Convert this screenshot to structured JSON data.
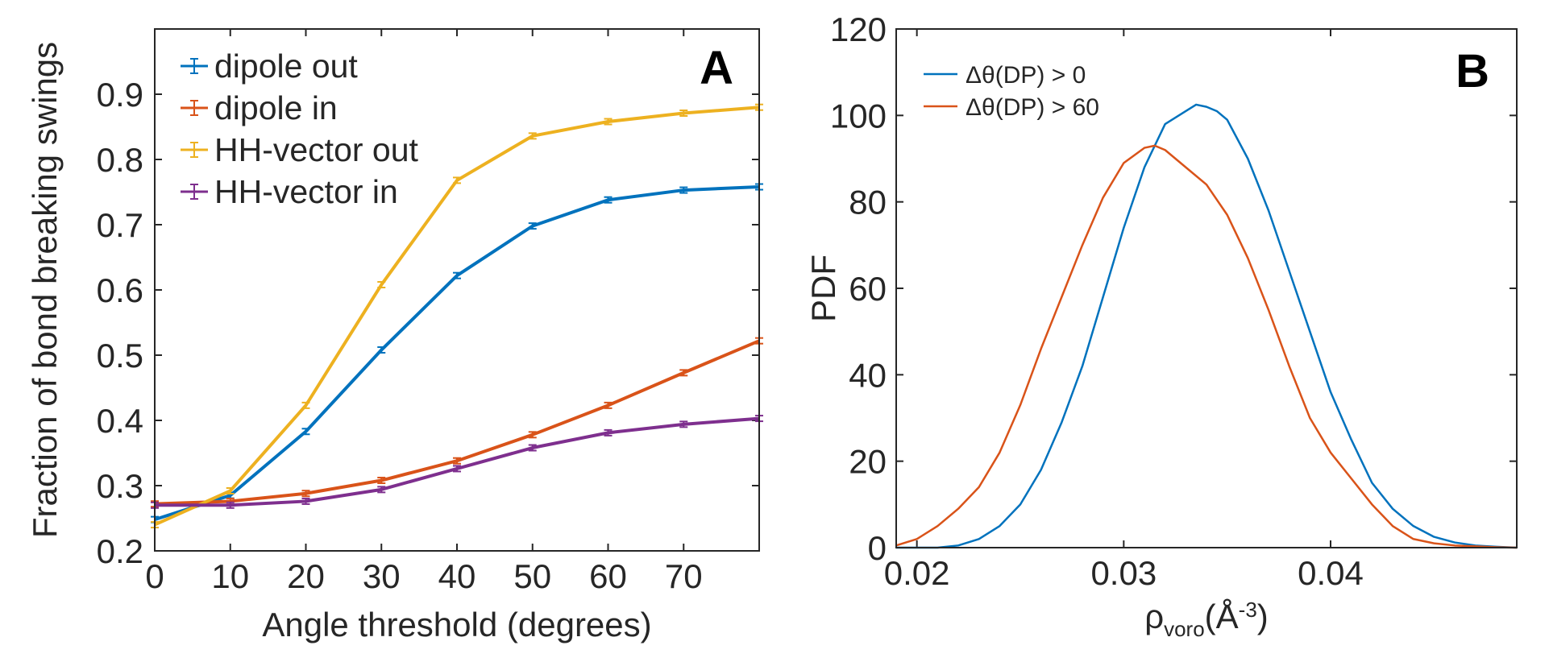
{
  "chart_data": [
    {
      "type": "line",
      "panel_label": "A",
      "title": "",
      "xlabel": "Angle threshold (degrees)",
      "ylabel": "Fraction of bond breaking swings",
      "xlim": [
        0,
        80
      ],
      "ylim": [
        0.2,
        1.0
      ],
      "xticks": [
        0,
        10,
        20,
        30,
        40,
        50,
        60,
        70
      ],
      "yticks": [
        0.2,
        0.3,
        0.4,
        0.5,
        0.6,
        0.7,
        0.8,
        0.9
      ],
      "grid": false,
      "legend_position": "top-left",
      "x": [
        0,
        10,
        20,
        30,
        40,
        50,
        60,
        70,
        80
      ],
      "series": [
        {
          "name": "dipole out",
          "color": "#0072BD",
          "values": [
            0.248,
            0.285,
            0.383,
            0.508,
            0.622,
            0.698,
            0.738,
            0.753,
            0.758
          ]
        },
        {
          "name": "dipole in",
          "color": "#D95319",
          "values": [
            0.272,
            0.276,
            0.288,
            0.308,
            0.338,
            0.378,
            0.423,
            0.473,
            0.522
          ]
        },
        {
          "name": "HH-vector out",
          "color": "#EDB120",
          "values": [
            0.24,
            0.292,
            0.423,
            0.608,
            0.768,
            0.836,
            0.858,
            0.871,
            0.88
          ]
        },
        {
          "name": "HH-vector in",
          "color": "#7E2F8E",
          "values": [
            0.27,
            0.27,
            0.276,
            0.294,
            0.326,
            0.358,
            0.381,
            0.394,
            0.403
          ]
        }
      ]
    },
    {
      "type": "line",
      "panel_label": "B",
      "title": "",
      "xlabel_main": "ρ",
      "xlabel_sub": "voro",
      "xlabel_paren_open": "(Å",
      "xlabel_sup": "-3",
      "xlabel_paren_close": ")",
      "ylabel": "PDF",
      "xlim": [
        0.019,
        0.049
      ],
      "ylim": [
        0,
        120
      ],
      "xticks": [
        0.02,
        0.03,
        0.04
      ],
      "xtick_labels": [
        "0.02",
        "0.03",
        "0.04"
      ],
      "yticks": [
        0,
        20,
        40,
        60,
        80,
        100,
        120
      ],
      "grid": false,
      "legend_position": "top-left",
      "series": [
        {
          "name": "Δθ(DP) > 0",
          "color": "#0072BD",
          "x": [
            0.019,
            0.021,
            0.022,
            0.023,
            0.024,
            0.025,
            0.026,
            0.027,
            0.028,
            0.029,
            0.03,
            0.031,
            0.032,
            0.033,
            0.0335,
            0.034,
            0.0345,
            0.035,
            0.036,
            0.037,
            0.038,
            0.039,
            0.04,
            0.041,
            0.042,
            0.043,
            0.044,
            0.045,
            0.046,
            0.047,
            0.048,
            0.049
          ],
          "values": [
            0,
            0,
            0.5,
            2,
            5,
            10,
            18,
            29,
            42,
            58,
            74,
            88,
            98,
            101,
            102.5,
            102,
            101,
            99,
            90,
            78,
            64,
            50,
            36,
            25,
            15,
            9,
            5,
            2.5,
            1.2,
            0.5,
            0.2,
            0
          ]
        },
        {
          "name": "Δθ(DP) > 60",
          "color": "#D95319",
          "x": [
            0.019,
            0.02,
            0.021,
            0.022,
            0.023,
            0.024,
            0.025,
            0.026,
            0.027,
            0.028,
            0.029,
            0.03,
            0.031,
            0.0315,
            0.032,
            0.033,
            0.034,
            0.035,
            0.036,
            0.037,
            0.038,
            0.039,
            0.04,
            0.041,
            0.042,
            0.043,
            0.044,
            0.045,
            0.046,
            0.047,
            0.048,
            0.049
          ],
          "values": [
            0.5,
            2,
            5,
            9,
            14,
            22,
            33,
            46,
            58,
            70,
            81,
            89,
            92.5,
            93,
            92,
            88,
            84,
            77,
            67,
            55,
            42,
            30,
            22,
            16,
            10,
            5,
            2,
            1,
            0.5,
            0.3,
            0.1,
            0
          ]
        }
      ]
    }
  ]
}
